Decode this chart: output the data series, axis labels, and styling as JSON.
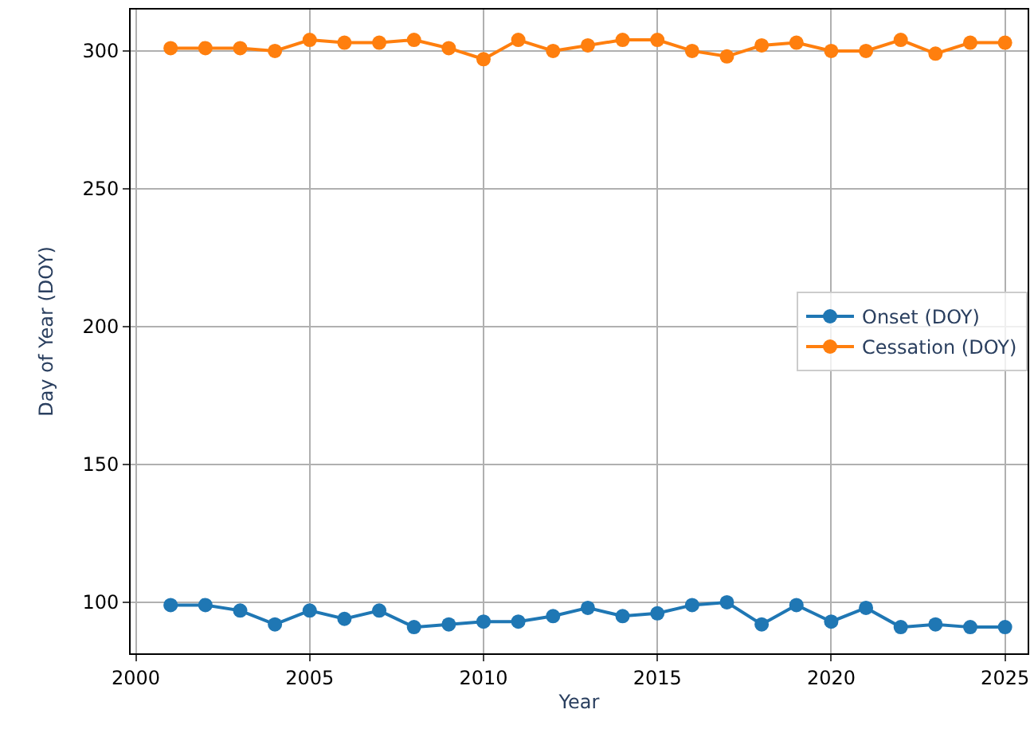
{
  "chart_data": {
    "type": "line",
    "xlabel": "Year",
    "ylabel": "Day of Year (DOY)",
    "x": [
      2001,
      2002,
      2003,
      2004,
      2005,
      2006,
      2007,
      2008,
      2009,
      2010,
      2011,
      2012,
      2013,
      2014,
      2015,
      2016,
      2017,
      2018,
      2019,
      2020,
      2021,
      2022,
      2023,
      2024,
      2025
    ],
    "series": [
      {
        "name": "Onset (DOY)",
        "color": "#1f77b4",
        "values": [
          99,
          99,
          97,
          92,
          97,
          94,
          97,
          91,
          92,
          93,
          93,
          95,
          98,
          95,
          96,
          99,
          100,
          92,
          99,
          93,
          98,
          91,
          92,
          91,
          91
        ]
      },
      {
        "name": "Cessation (DOY)",
        "color": "#ff7f0e",
        "values": [
          301,
          301,
          301,
          300,
          304,
          303,
          303,
          304,
          301,
          297,
          304,
          300,
          302,
          304,
          304,
          300,
          298,
          302,
          303,
          300,
          300,
          304,
          299,
          303,
          303
        ]
      }
    ],
    "xlim": [
      1999.85,
      2025.65
    ],
    "xticks": [
      2000,
      2005,
      2010,
      2015,
      2020,
      2025
    ],
    "ylim": [
      81.5,
      315
    ],
    "yticks": [
      100,
      150,
      200,
      250,
      300
    ],
    "grid": true,
    "legend": "right",
    "marker": "circle",
    "line_style": "solid"
  }
}
